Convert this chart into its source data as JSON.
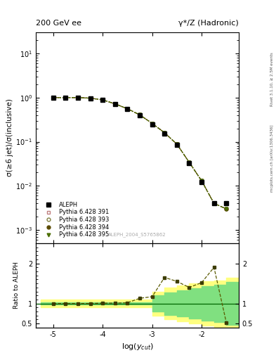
{
  "title_left": "200 GeV ee",
  "title_right": "γ*/Z (Hadronic)",
  "ylabel_main": "σ(≥6 jet)/σ(inclusive)",
  "ylabel_ratio": "Ratio to ALEPH",
  "xlabel": "log(y_{cut})",
  "right_label": "Rivet 3.1.10, ≥ 2.5M events",
  "right_label2": "mcplots.cern.ch [arXiv:1306.3436]",
  "watermark": "ALEPH_2004_S5765862",
  "log_ycut": [
    -5.0,
    -4.75,
    -4.5,
    -4.25,
    -4.0,
    -3.75,
    -3.5,
    -3.25,
    -3.0,
    -2.75,
    -2.5,
    -2.25,
    -2.0,
    -1.75,
    -1.5
  ],
  "aleph_y": [
    1.0,
    1.0,
    1.0,
    0.97,
    0.88,
    0.72,
    0.55,
    0.4,
    0.25,
    0.155,
    0.085,
    0.033,
    0.012,
    0.004,
    0.004
  ],
  "pythia391_y": [
    1.0,
    1.0,
    1.0,
    0.97,
    0.89,
    0.72,
    0.56,
    0.405,
    0.26,
    0.16,
    0.088,
    0.034,
    0.013,
    0.004,
    0.003
  ],
  "pythia393_y": [
    1.0,
    1.0,
    1.0,
    0.97,
    0.89,
    0.72,
    0.56,
    0.405,
    0.26,
    0.16,
    0.088,
    0.034,
    0.013,
    0.004,
    0.003
  ],
  "pythia394_y": [
    1.0,
    1.0,
    1.0,
    0.97,
    0.89,
    0.72,
    0.56,
    0.405,
    0.26,
    0.16,
    0.088,
    0.034,
    0.013,
    0.004,
    0.003
  ],
  "pythia395_y": [
    1.0,
    1.0,
    1.0,
    0.97,
    0.89,
    0.72,
    0.56,
    0.405,
    0.26,
    0.16,
    0.088,
    0.034,
    0.013,
    0.004,
    0.003
  ],
  "ratio_x": [
    -5.0,
    -4.75,
    -4.5,
    -4.25,
    -4.0,
    -3.75,
    -3.5,
    -3.25,
    -3.0,
    -2.75,
    -2.5,
    -2.25,
    -2.0,
    -1.75,
    -1.5
  ],
  "ratio_y": [
    1.0,
    1.0,
    1.0,
    1.0,
    1.01,
    1.01,
    1.02,
    1.13,
    1.17,
    1.65,
    1.55,
    1.4,
    1.52,
    1.9,
    0.52
  ],
  "band_x_edges": [
    -5.25,
    -4.75,
    -4.5,
    -4.25,
    -4.0,
    -3.75,
    -3.5,
    -3.25,
    -3.0,
    -2.75,
    -2.5,
    -2.25,
    -2.0,
    -1.75,
    -1.5,
    -1.25
  ],
  "yellow_lo": [
    0.9,
    0.9,
    0.9,
    0.9,
    0.9,
    0.9,
    0.9,
    0.9,
    0.7,
    0.6,
    0.55,
    0.5,
    0.45,
    0.42,
    0.35,
    0.35
  ],
  "yellow_hi": [
    1.1,
    1.1,
    1.1,
    1.1,
    1.1,
    1.1,
    1.1,
    1.1,
    1.3,
    1.4,
    1.45,
    1.5,
    1.55,
    1.58,
    1.65,
    1.65
  ],
  "green_lo": [
    0.97,
    0.97,
    0.97,
    0.97,
    0.97,
    0.97,
    0.97,
    0.97,
    0.8,
    0.72,
    0.67,
    0.62,
    0.57,
    0.53,
    0.47,
    0.47
  ],
  "green_hi": [
    1.03,
    1.03,
    1.03,
    1.03,
    1.03,
    1.03,
    1.03,
    1.03,
    1.2,
    1.28,
    1.33,
    1.38,
    1.43,
    1.47,
    1.53,
    1.53
  ],
  "marker_color": "#3d3d00",
  "line_color": "#5a5a00",
  "aleph_color": "#000000",
  "green_color": "#80e080",
  "yellow_color": "#ffff80",
  "xlim": [
    -5.35,
    -1.25
  ],
  "ylim_main_lo": 0.0005,
  "ylim_main_hi": 30,
  "ylim_ratio_lo": 0.4,
  "ylim_ratio_hi": 2.5
}
